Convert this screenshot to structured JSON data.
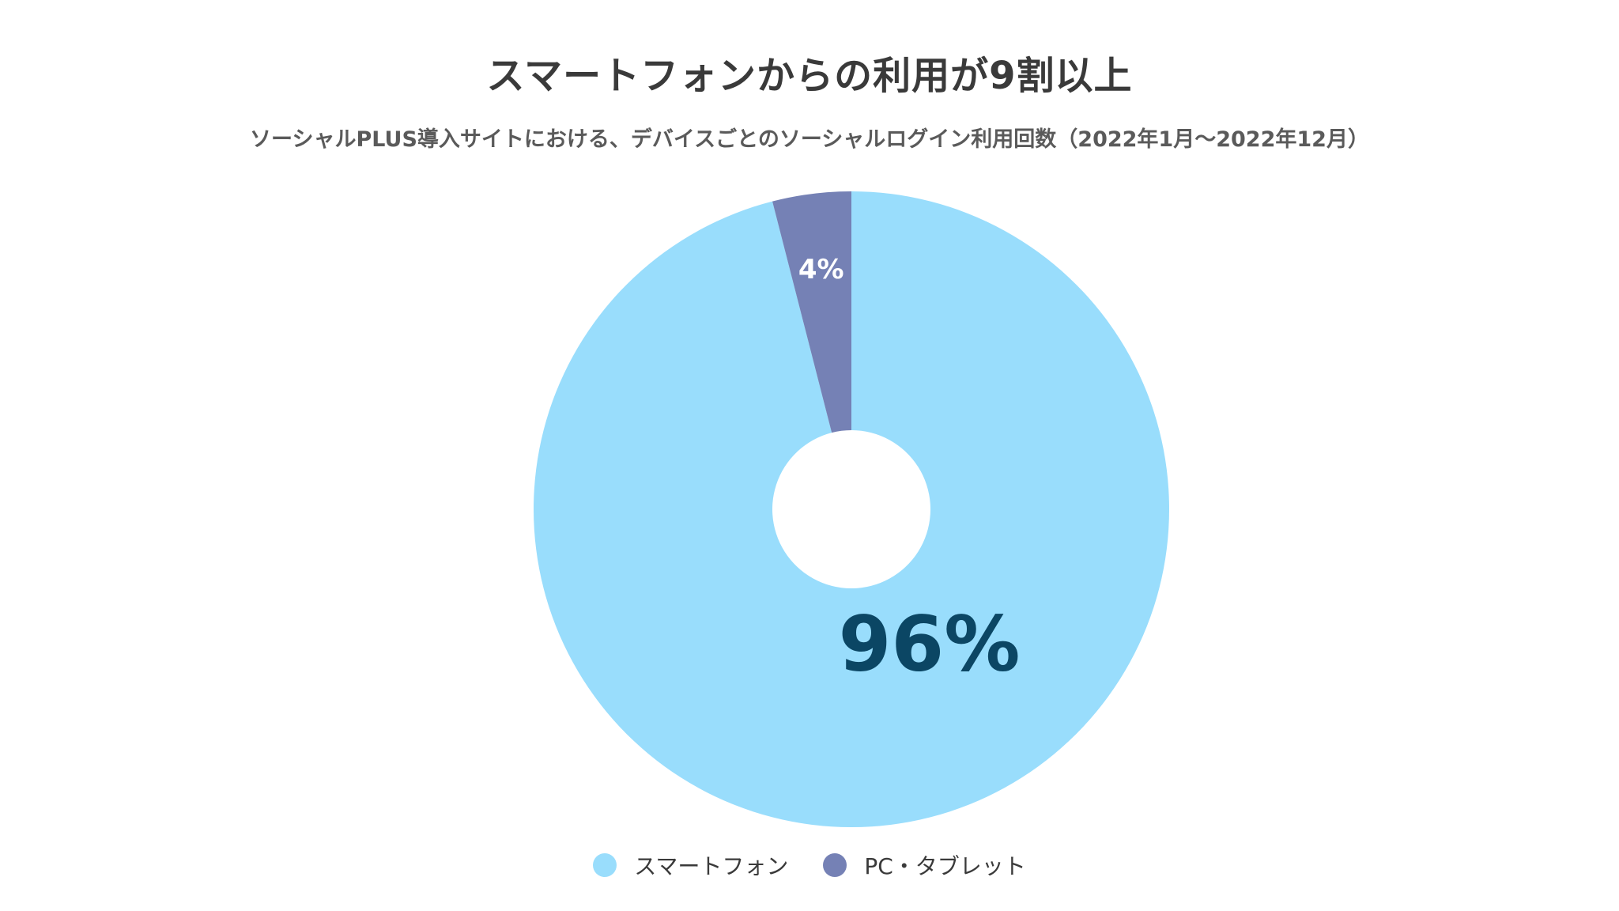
{
  "header": {
    "title": "スマートフォンからの利用が9割以上",
    "subtitle": "ソーシャルPLUS導入サイトにおける、デバイスごとのソーシャルログイン利用回数（2022年1月〜2022年12月）"
  },
  "chart_data": {
    "type": "pie",
    "donut": true,
    "start_angle_deg": 0,
    "direction": "clockwise",
    "legend_position": "bottom",
    "series": [
      {
        "name": "スマートフォン",
        "value": 96,
        "label": "96%",
        "color": "#99ddfc",
        "label_color": "#0b4664"
      },
      {
        "name": "PC・タブレット",
        "value": 4,
        "label": "4%",
        "color": "#7581b5",
        "label_color": "#ffffff"
      }
    ]
  }
}
